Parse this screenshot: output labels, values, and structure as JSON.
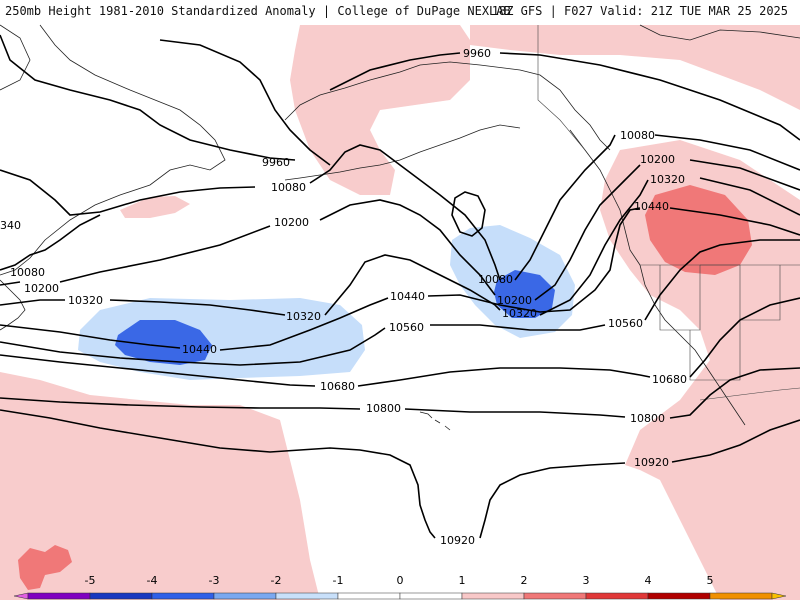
{
  "header": {
    "left": "250mb Height 1981-2010 Standardized Anomaly | College of DuPage NEXLAB",
    "right": "18Z GFS | F027 Valid: 21Z TUE MAR 25 2025"
  },
  "colorbar": {
    "ticks": [
      "-5",
      "-4",
      "-3",
      "-2",
      "-1",
      "0",
      "1",
      "2",
      "3",
      "4",
      "5"
    ],
    "colors": [
      "#e060e0",
      "#8000c0",
      "#1838c0",
      "#3060e8",
      "#7aa8f0",
      "#c8e0fa",
      "#ffffff",
      "#ffffff",
      "#f8c8c8",
      "#f07878",
      "#e03838",
      "#b00000",
      "#f09000",
      "#f8c000"
    ]
  },
  "contour_labels": [
    {
      "id": "9960-a",
      "text": "9960"
    },
    {
      "id": "9960-b",
      "text": "9960"
    },
    {
      "id": "10080-a",
      "text": "10080"
    },
    {
      "id": "10080-b",
      "text": "10080"
    },
    {
      "id": "10080-c",
      "text": "10080"
    },
    {
      "id": "10080-d",
      "text": "10080"
    },
    {
      "id": "10200-a",
      "text": "10200"
    },
    {
      "id": "10200-b",
      "text": "10200"
    },
    {
      "id": "10200-c",
      "text": "10200"
    },
    {
      "id": "10200-d",
      "text": "10200"
    },
    {
      "id": "10320-a",
      "text": "10320"
    },
    {
      "id": "10320-b",
      "text": "10320"
    },
    {
      "id": "10320-c",
      "text": "10320"
    },
    {
      "id": "10320-d",
      "text": "10320"
    },
    {
      "id": "10440-a",
      "text": "10440"
    },
    {
      "id": "10440-b",
      "text": "10440"
    },
    {
      "id": "10440-c",
      "text": "10440"
    },
    {
      "id": "10560-a",
      "text": "10560"
    },
    {
      "id": "10560-b",
      "text": "10560"
    },
    {
      "id": "10680-a",
      "text": "10680"
    },
    {
      "id": "10680-b",
      "text": "10680"
    },
    {
      "id": "10800-a",
      "text": "10800"
    },
    {
      "id": "10800-b",
      "text": "10800"
    },
    {
      "id": "10920-a",
      "text": "10920"
    },
    {
      "id": "10920-b",
      "text": "10920"
    },
    {
      "id": "340-edge",
      "text": "340"
    }
  ]
}
